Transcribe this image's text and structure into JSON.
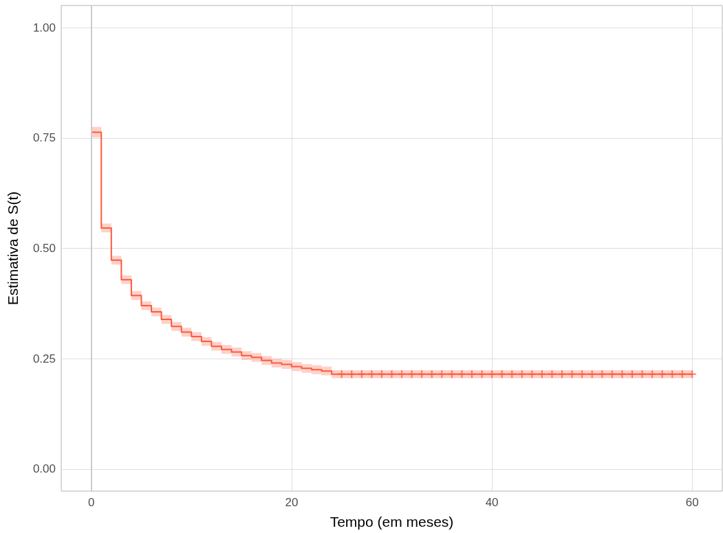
{
  "chart_data": {
    "type": "step",
    "xlabel": "Tempo (em meses)",
    "ylabel": "Estimativa de S(t)",
    "xlim": [
      -3,
      63
    ],
    "xticks": [
      0,
      20,
      40,
      60
    ],
    "ylim": [
      -0.05,
      1.05
    ],
    "yticks": [
      {
        "value": 0,
        "label": "0.00"
      },
      {
        "value": 0.25,
        "label": "0.25"
      },
      {
        "value": 0.5,
        "label": "0.50"
      },
      {
        "value": 0.75,
        "label": "0.75"
      },
      {
        "value": 1,
        "label": "1.00"
      }
    ],
    "grid": true,
    "ref_lines": [
      {
        "axis": "x",
        "value": 0,
        "color": "#cccccc"
      }
    ],
    "series": [
      {
        "color": "#fc5a3e",
        "x": [
          0,
          1,
          2,
          3,
          4,
          5,
          6,
          7,
          8,
          9,
          10,
          11,
          12,
          13,
          14,
          15,
          16,
          17,
          18,
          19,
          20,
          21,
          22,
          23,
          24,
          60
        ],
        "values": [
          0.763,
          0.546,
          0.473,
          0.429,
          0.393,
          0.37,
          0.356,
          0.339,
          0.323,
          0.31,
          0.3,
          0.289,
          0.278,
          0.271,
          0.265,
          0.257,
          0.253,
          0.246,
          0.24,
          0.237,
          0.232,
          0.228,
          0.225,
          0.222,
          0.215,
          0.215
        ],
        "lower": [
          0.751,
          0.536,
          0.463,
          0.419,
          0.383,
          0.36,
          0.346,
          0.329,
          0.313,
          0.3,
          0.29,
          0.279,
          0.268,
          0.261,
          0.255,
          0.247,
          0.243,
          0.236,
          0.23,
          0.227,
          0.222,
          0.218,
          0.215,
          0.212,
          0.206,
          0.206
        ],
        "upper": [
          0.775,
          0.556,
          0.483,
          0.439,
          0.403,
          0.38,
          0.366,
          0.349,
          0.333,
          0.32,
          0.31,
          0.299,
          0.288,
          0.281,
          0.275,
          0.267,
          0.263,
          0.256,
          0.25,
          0.247,
          0.242,
          0.238,
          0.235,
          0.232,
          0.224,
          0.224
        ]
      },
      {
        "type": "scatter",
        "marker": "cross",
        "color": "#fc5a3e",
        "x": [
          25,
          26,
          27,
          28,
          29,
          30,
          31,
          32,
          33,
          34,
          35,
          36,
          37,
          38,
          39,
          40,
          41,
          42,
          43,
          44,
          45,
          46,
          47,
          48,
          49,
          50,
          51,
          52,
          53,
          54,
          55,
          56,
          57,
          58,
          59,
          60
        ],
        "values": [
          0.215,
          0.215,
          0.215,
          0.215,
          0.215,
          0.215,
          0.215,
          0.215,
          0.215,
          0.215,
          0.215,
          0.215,
          0.215,
          0.215,
          0.215,
          0.215,
          0.215,
          0.215,
          0.215,
          0.215,
          0.215,
          0.215,
          0.215,
          0.215,
          0.215,
          0.215,
          0.215,
          0.215,
          0.215,
          0.215,
          0.215,
          0.215,
          0.215,
          0.215,
          0.215,
          0.215
        ]
      }
    ]
  }
}
